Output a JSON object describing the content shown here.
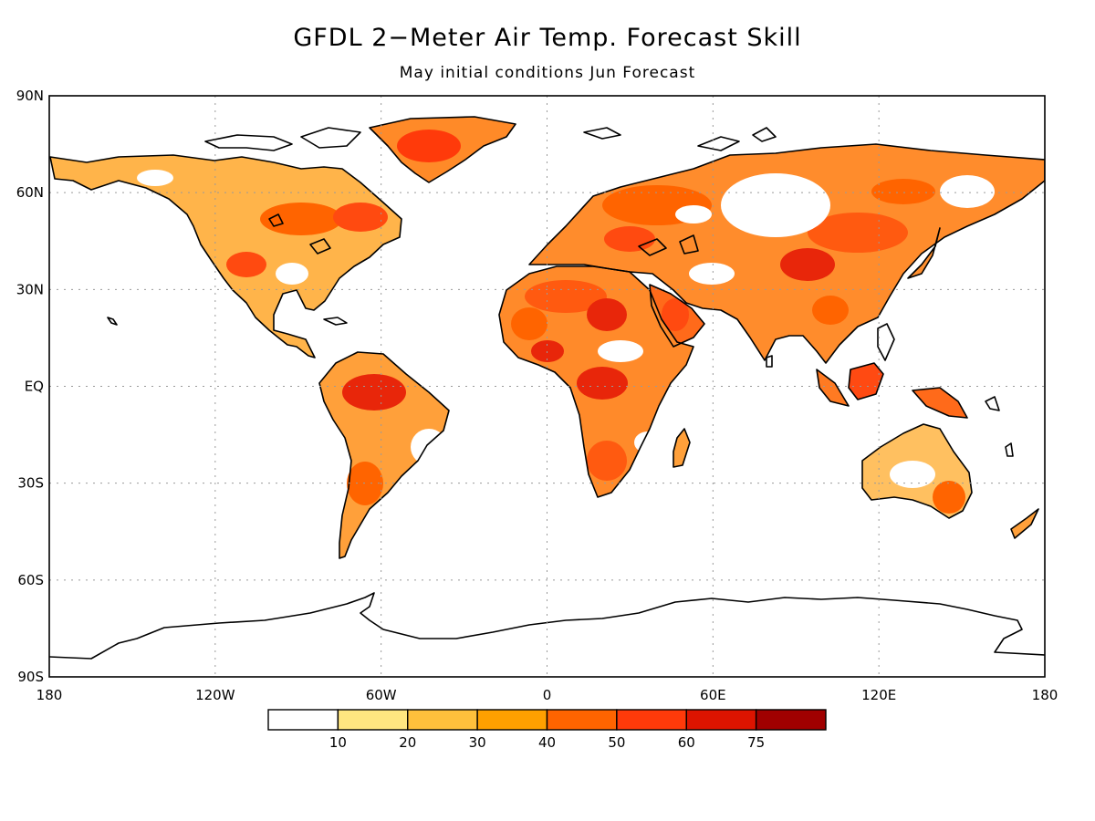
{
  "title": "GFDL 2−Meter Air Temp. Forecast Skill",
  "subtitle": "May initial conditions  Jun Forecast",
  "map": {
    "projection": "equirectangular",
    "lon_range": [
      -180,
      180
    ],
    "lat_range": [
      -90,
      90
    ],
    "grid": "dotted",
    "lat_ticks": [
      {
        "lat": 90,
        "label": "90N"
      },
      {
        "lat": 60,
        "label": "60N"
      },
      {
        "lat": 30,
        "label": "30N"
      },
      {
        "lat": 0,
        "label": "EQ"
      },
      {
        "lat": -30,
        "label": "30S"
      },
      {
        "lat": -60,
        "label": "60S"
      },
      {
        "lat": -90,
        "label": "90S"
      }
    ],
    "lon_ticks": [
      {
        "lon": -180,
        "label": "180"
      },
      {
        "lon": -120,
        "label": "120W"
      },
      {
        "lon": -60,
        "label": "60W"
      },
      {
        "lon": 0,
        "label": "0"
      },
      {
        "lon": 60,
        "label": "60E"
      },
      {
        "lon": 120,
        "label": "120E"
      },
      {
        "lon": 180,
        "label": "180"
      }
    ]
  },
  "colorbar": {
    "colors": [
      "#ffffff",
      "#ffe680",
      "#ffc03c",
      "#ffa000",
      "#ff6400",
      "#ff3a0a",
      "#dc1400",
      "#a00000"
    ],
    "labels": [
      "10",
      "20",
      "30",
      "40",
      "50",
      "60",
      "75"
    ]
  }
}
